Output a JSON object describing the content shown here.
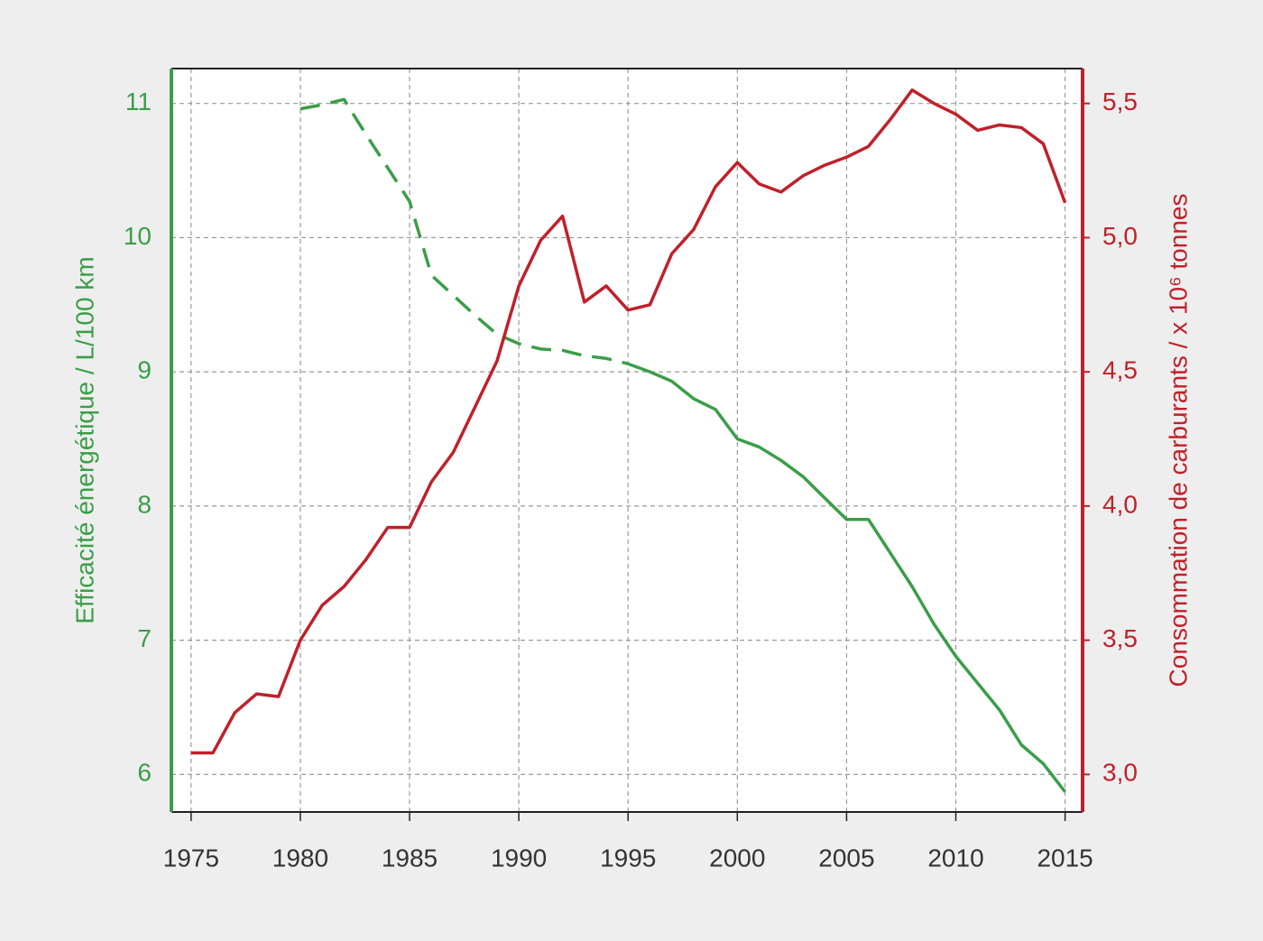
{
  "chart_data": {
    "type": "line",
    "x": [
      1975,
      1976,
      1977,
      1978,
      1979,
      1980,
      1981,
      1982,
      1983,
      1984,
      1985,
      1986,
      1987,
      1988,
      1989,
      1990,
      1991,
      1992,
      1993,
      1994,
      1995,
      1996,
      1997,
      1998,
      1999,
      2000,
      2001,
      2002,
      2003,
      2004,
      2005,
      2006,
      2007,
      2008,
      2009,
      2010,
      2011,
      2012,
      2013,
      2014,
      2015
    ],
    "xlim": [
      1974.1,
      2015.8
    ],
    "xticks": [
      1975,
      1980,
      1985,
      1990,
      1995,
      2000,
      2005,
      2010,
      2015
    ],
    "ylim": [
      5.72,
      11.26
    ],
    "yticks": [
      6,
      7,
      8,
      9,
      10,
      11
    ],
    "y2lim": [
      2.86,
      5.63
    ],
    "y2ticks": [
      {
        "value": 3,
        "label": "3,0"
      },
      {
        "value": 3.5,
        "label": "3,5"
      },
      {
        "value": 4,
        "label": "4,0"
      },
      {
        "value": 4.5,
        "label": "4,5"
      },
      {
        "value": 5,
        "label": "5,0"
      },
      {
        "value": 5.5,
        "label": "5,5"
      }
    ],
    "ylabel": "Efficacité énergétique / L/100 km",
    "y2label": "Consommation de carburants / x 10⁶ tonnes",
    "ycolor": "#3a9e48",
    "y2color": "#c0202a",
    "grid": true,
    "series": [
      {
        "color": "#3a9e48",
        "dashed": true,
        "axis": "y",
        "values": [
          null,
          null,
          null,
          null,
          null,
          10.96,
          10.99,
          11.03,
          10.77,
          10.52,
          10.27,
          9.72,
          9.57,
          9.42,
          9.28,
          9.21,
          9.17,
          9.16,
          9.12,
          9.1,
          9.06,
          null,
          null,
          null,
          null,
          null,
          null,
          null,
          null,
          null,
          null,
          null,
          null,
          null,
          null,
          null,
          null,
          null,
          null,
          null,
          null
        ]
      },
      {
        "color": "#3a9e48",
        "dashed": false,
        "axis": "y",
        "values": [
          null,
          null,
          null,
          null,
          null,
          null,
          null,
          null,
          null,
          null,
          null,
          null,
          null,
          null,
          null,
          null,
          null,
          null,
          null,
          null,
          9.06,
          9.0,
          8.93,
          8.8,
          8.72,
          8.5,
          8.44,
          8.34,
          8.22,
          8.06,
          7.9,
          7.9,
          7.65,
          7.4,
          7.12,
          6.88,
          6.68,
          6.48,
          6.22,
          6.08,
          5.87
        ]
      },
      {
        "color": "#c0202a",
        "dashed": false,
        "axis": "y2",
        "values": [
          3.08,
          3.08,
          3.23,
          3.3,
          3.29,
          3.5,
          3.63,
          3.7,
          3.8,
          3.92,
          3.92,
          4.09,
          4.2,
          4.37,
          4.54,
          4.82,
          4.99,
          5.08,
          4.76,
          4.82,
          4.73,
          4.75,
          4.94,
          5.03,
          5.19,
          5.28,
          5.2,
          5.17,
          5.23,
          5.27,
          5.3,
          5.34,
          5.44,
          5.55,
          5.5,
          5.46,
          5.4,
          5.42,
          5.41,
          5.35,
          5.13
        ]
      }
    ]
  }
}
